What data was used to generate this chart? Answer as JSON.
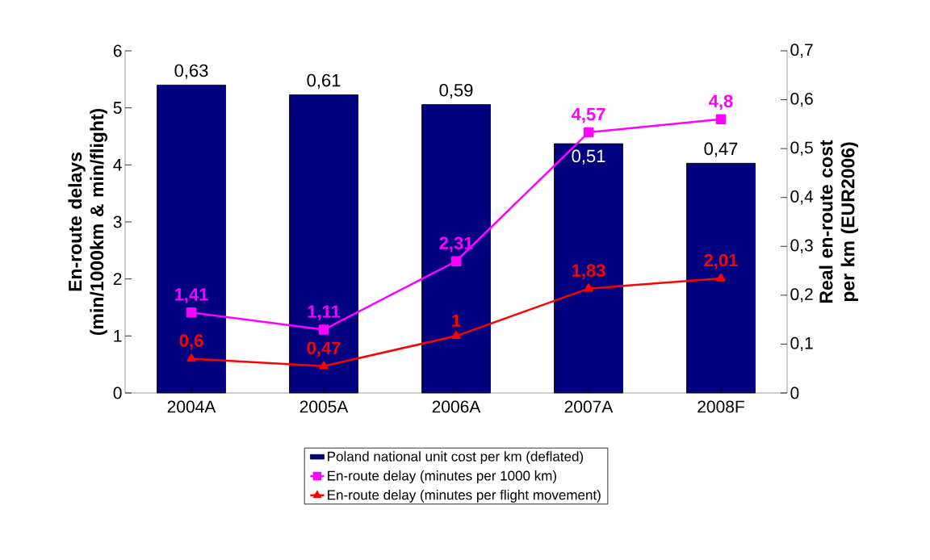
{
  "chart_data": {
    "type": "bar",
    "ylabel": "En-route delays (min/1000km & min/flight)",
    "y2label": "Real en-route cost per km (EUR2006)",
    "categories": [
      "2004A",
      "2005A",
      "2006A",
      "2007A",
      "2008F"
    ],
    "ylim": [
      0,
      6
    ],
    "yticks": [
      0,
      1,
      2,
      3,
      4,
      5,
      6
    ],
    "y2lim": [
      0,
      0.7
    ],
    "y2ticks": [
      0,
      {
        "value": 0.1,
        "label": "0,1"
      },
      {
        "value": 0.2,
        "label": "0,2"
      },
      {
        "value": 0.3,
        "label": "0,3"
      },
      {
        "value": 0.4,
        "label": "0,4"
      },
      {
        "value": 0.5,
        "label": "0,5"
      },
      {
        "value": 0.6,
        "label": "0,6"
      },
      {
        "value": 0.7,
        "label": "0,7"
      }
    ],
    "legend": "bottom",
    "line_style": "solid",
    "series": [
      {
        "name": "Poland national unit cost per km (deflated)",
        "axis": "y2",
        "color": "#000080",
        "values": [
          0.63,
          0.61,
          0.59,
          0.51,
          0.47
        ],
        "value_labels": [
          "0,63",
          "0,61",
          "0,59",
          "0,51",
          "0,47"
        ]
      },
      {
        "name": "En-route delay (minutes per 1000 km)",
        "type": "line",
        "marker": "square",
        "color": "#ff00ff",
        "values": [
          1.41,
          1.11,
          2.31,
          4.57,
          4.8
        ],
        "value_labels": [
          "1,41",
          "1,11",
          "2,31",
          "4,57",
          "4,8"
        ]
      },
      {
        "name": "En-route delay (minutes per flight movement)",
        "type": "line",
        "marker": "triangle",
        "color": "#ff0000",
        "values": [
          0.6,
          0.47,
          1,
          1.83,
          2.01
        ],
        "value_labels": [
          "0,6",
          "0,47",
          "1",
          "1,83",
          "2,01"
        ]
      }
    ]
  }
}
